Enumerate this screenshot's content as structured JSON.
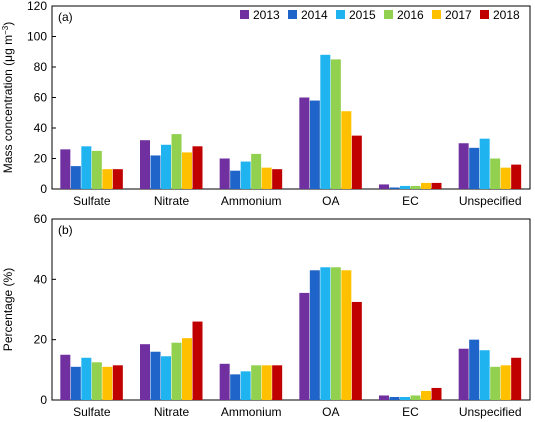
{
  "colors": {
    "2013": "#7030a0",
    "2014": "#1f64c8",
    "2015": "#1fb4f0",
    "2016": "#92d050",
    "2017": "#ffc000",
    "2018": "#c00000"
  },
  "chart_data": [
    {
      "type": "bar",
      "panel_label": "(a)",
      "ylabel_main": "Mass concentration (μg m",
      "ylabel_sup": "−3",
      "ylabel_end": ")",
      "ylim": [
        0,
        120
      ],
      "yticks": [
        "0",
        "20",
        "40",
        "60",
        "80",
        "100",
        "120"
      ],
      "legend_position": "top-right",
      "categories": [
        "Sulfate",
        "Nitrate",
        "Ammonium",
        "OA",
        "EC",
        "Unspecified"
      ],
      "series": [
        {
          "name": "2013",
          "values": [
            26,
            32,
            20,
            60,
            3,
            30
          ]
        },
        {
          "name": "2014",
          "values": [
            15,
            22,
            12,
            58,
            1,
            27
          ]
        },
        {
          "name": "2015",
          "values": [
            28,
            29,
            18,
            88,
            2,
            33
          ]
        },
        {
          "name": "2016",
          "values": [
            25,
            36,
            23,
            85,
            2,
            20
          ]
        },
        {
          "name": "2017",
          "values": [
            13,
            24,
            14,
            51,
            4,
            14
          ]
        },
        {
          "name": "2018",
          "values": [
            13,
            28,
            13,
            35,
            4,
            16
          ]
        }
      ]
    },
    {
      "type": "bar",
      "panel_label": "(b)",
      "ylabel_main": "Percentage (%)",
      "ylabel_sup": "",
      "ylabel_end": "",
      "ylim": [
        0,
        60
      ],
      "yticks": [
        "0",
        "20",
        "40",
        "60"
      ],
      "categories": [
        "Sulfate",
        "Nitrate",
        "Ammonium",
        "OA",
        "EC",
        "Unspecified"
      ],
      "series": [
        {
          "name": "2013",
          "values": [
            15,
            18.5,
            12,
            35.5,
            1.5,
            17
          ]
        },
        {
          "name": "2014",
          "values": [
            11,
            16,
            8.5,
            43,
            1,
            20
          ]
        },
        {
          "name": "2015",
          "values": [
            14,
            14.5,
            9.5,
            44,
            1,
            16.5
          ]
        },
        {
          "name": "2016",
          "values": [
            12.5,
            19,
            11.5,
            44,
            1.5,
            11
          ]
        },
        {
          "name": "2017",
          "values": [
            11,
            20.5,
            11.5,
            43,
            3,
            11.5
          ]
        },
        {
          "name": "2018",
          "values": [
            11.5,
            26,
            11.5,
            32.5,
            4,
            14
          ]
        }
      ]
    }
  ]
}
